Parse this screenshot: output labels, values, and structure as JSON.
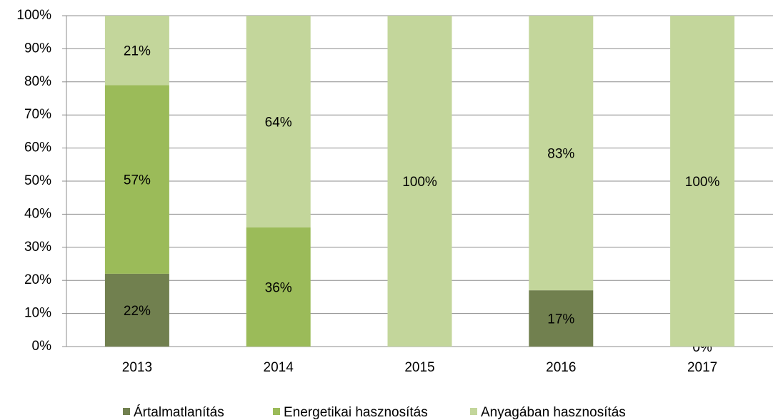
{
  "chart_data": {
    "type": "stacked_bar",
    "categories": [
      "2013",
      "2014",
      "2015",
      "2016",
      "2017"
    ],
    "series": [
      {
        "name": "Ártalmatlanítás",
        "color": "#71804f",
        "values": [
          22,
          0,
          0,
          17,
          0
        ],
        "value_labels": [
          "22%",
          null,
          null,
          "17%",
          "0%"
        ]
      },
      {
        "name": "Energetikai hasznosítás",
        "color": "#9bbb59",
        "values": [
          57,
          36,
          0,
          0,
          0
        ],
        "value_labels": [
          "57%",
          "36%",
          null,
          null,
          null
        ]
      },
      {
        "name": "Anyagában hasznosítás",
        "color": "#c3d69b",
        "values": [
          21,
          64,
          100,
          83,
          100
        ],
        "value_labels": [
          "21%",
          "64%",
          "100%",
          "83%",
          "100%"
        ]
      }
    ],
    "ylim": [
      0,
      100
    ],
    "yticks": [
      {
        "value": 0,
        "label": "0%"
      },
      {
        "value": 10,
        "label": "10%"
      },
      {
        "value": 20,
        "label": "20%"
      },
      {
        "value": 30,
        "label": "30%"
      },
      {
        "value": 40,
        "label": "40%"
      },
      {
        "value": 50,
        "label": "50%"
      },
      {
        "value": 60,
        "label": "60%"
      },
      {
        "value": 70,
        "label": "70%"
      },
      {
        "value": 80,
        "label": "80%"
      },
      {
        "value": 90,
        "label": "90%"
      },
      {
        "value": 100,
        "label": "100%"
      }
    ],
    "grid": true,
    "legend": "bottom"
  }
}
